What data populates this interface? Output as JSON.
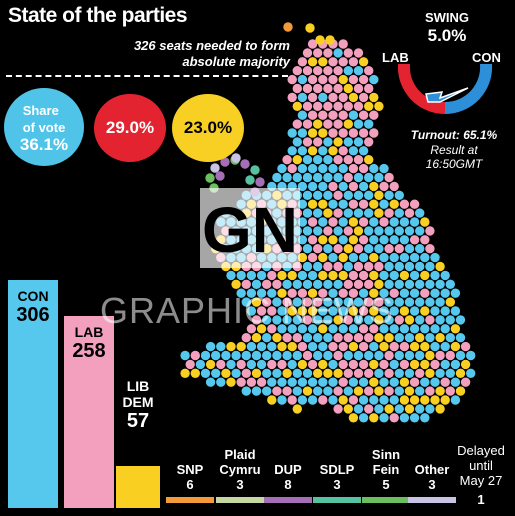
{
  "title": "State of the parties",
  "majority_note": "326 seats needed to form absolute majority",
  "share_of_vote": {
    "label": "Share of vote",
    "con": "36.1%",
    "lab": "29.0%",
    "libdem": "23.0%"
  },
  "swing": {
    "label": "SWING",
    "value": "5.0%",
    "from": "LAB",
    "to": "CON"
  },
  "turnout": "Turnout: 65.1%",
  "result_time": "Result at 16:50GMT",
  "watermark": "GRAPHIC NEWS",
  "logo_text": "GN",
  "colors": {
    "con": "#56c8ee",
    "lab": "#f2a0bd",
    "libdem": "#f9d022",
    "snp": "#f39a3a",
    "plaid": "#c6d7a4",
    "dup": "#a56fb8",
    "sdlp": "#55c3a2",
    "sinnfein": "#6bbf5f",
    "other": "#c9c3e6",
    "lab_share": "#e32430",
    "con_share": "#4fc3e8"
  },
  "chart_data": {
    "type": "bar",
    "title": "State of the parties",
    "categories": [
      "CON",
      "LAB",
      "LIB DEM",
      "SNP",
      "Plaid Cymru",
      "DUP",
      "SDLP",
      "Sinn Fein",
      "Other",
      "Delayed until May 27"
    ],
    "values": [
      306,
      258,
      57,
      6,
      3,
      8,
      3,
      5,
      3,
      1
    ],
    "major": [
      {
        "name": "CON",
        "seats": "306",
        "value": 306
      },
      {
        "name": "LAB",
        "seats": "258",
        "value": 258
      },
      {
        "name": "LIB DEM",
        "seats": "57",
        "value": 57
      }
    ],
    "minor": [
      {
        "name": "SNP",
        "seats": "6",
        "color_key": "snp"
      },
      {
        "name": "Plaid Cymru",
        "seats": "3",
        "color_key": "plaid"
      },
      {
        "name": "DUP",
        "seats": "8",
        "color_key": "dup"
      },
      {
        "name": "SDLP",
        "seats": "3",
        "color_key": "sdlp"
      },
      {
        "name": "Sinn Fein",
        "seats": "5",
        "color_key": "sinnfein"
      },
      {
        "name": "Other",
        "seats": "3",
        "color_key": "other"
      },
      {
        "name": "Delayed until May 27",
        "seats": "1",
        "color_key": "other"
      }
    ],
    "majority_threshold": 326,
    "vote_share": {
      "CON": 36.1,
      "LAB": 29.0,
      "LIB DEM": 23.0
    },
    "swing_lab_to_con": 5.0,
    "turnout": 65.1
  }
}
